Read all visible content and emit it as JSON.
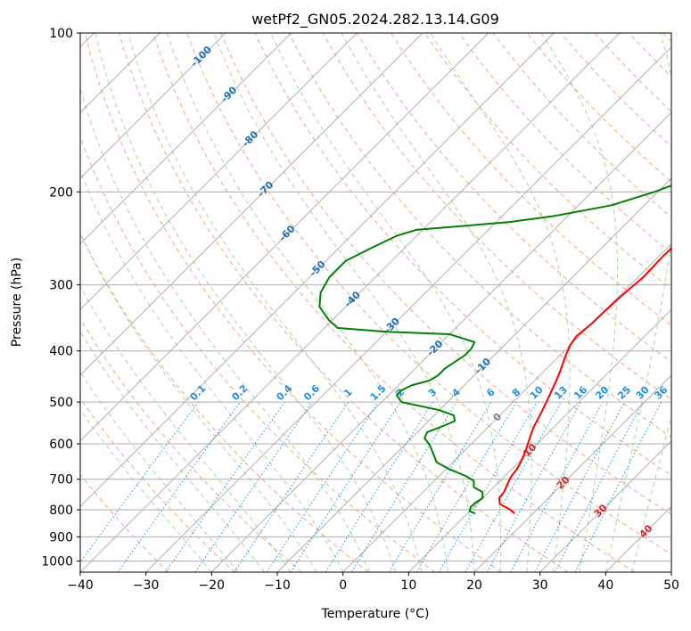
{
  "chart_data": {
    "type": "skew-t",
    "title": "wetPf2_GN05.2024.282.13.14.G09",
    "xlabel": "Temperature (°C)",
    "ylabel": "Pressure (hPa)",
    "xlim": [
      -40,
      50
    ],
    "ylim": [
      1050,
      100
    ],
    "x_ticks": [
      "−40",
      "−30",
      "−20",
      "−10",
      "0",
      "10",
      "20",
      "30",
      "40",
      "50"
    ],
    "y_ticks": [
      "100",
      "200",
      "300",
      "400",
      "500",
      "600",
      "700",
      "800",
      "900",
      "1000"
    ],
    "grid": true,
    "colors": {
      "temperature": "#ff0000",
      "dewpoint": "#008000",
      "isotherm": "#b0b0b0",
      "dry_adiabat": "#f4a582",
      "moist_adiabat": "#a8d5a2",
      "mixing_ratio": "#1f8fe6",
      "isotherm_label": "#1f6fb4",
      "zero_label": "#808080",
      "warm_label": "#d62728"
    },
    "series": [
      {
        "role": "temperature",
        "points": [
          [
            17.2,
            813
          ],
          [
            16.0,
            800
          ],
          [
            13.5,
            780
          ],
          [
            12.5,
            760
          ],
          [
            12.3,
            740
          ],
          [
            11.5,
            710
          ],
          [
            11.0,
            690
          ],
          [
            10.8,
            670
          ],
          [
            10.3,
            650
          ],
          [
            9.7,
            630
          ],
          [
            9.0,
            610
          ],
          [
            8.2,
            590
          ],
          [
            7.0,
            560
          ],
          [
            6.4,
            540
          ],
          [
            5.6,
            515
          ],
          [
            4.3,
            480
          ],
          [
            3.5,
            460
          ],
          [
            2.6,
            440
          ],
          [
            1.0,
            410
          ],
          [
            0.0,
            390
          ],
          [
            -0.4,
            375
          ],
          [
            0.0,
            355
          ],
          [
            0.1,
            335
          ],
          [
            0.3,
            315
          ],
          [
            0.8,
            290
          ],
          [
            0.6,
            265
          ],
          [
            0.8,
            240
          ],
          [
            1.6,
            225
          ],
          [
            3.0,
            210
          ],
          [
            5.0,
            197
          ],
          [
            8.0,
            185
          ],
          [
            10.5,
            175
          ],
          [
            12.5,
            165
          ],
          [
            14.0,
            155
          ],
          [
            14.8,
            145
          ],
          [
            15.8,
            135
          ],
          [
            17.2,
            125
          ],
          [
            19.0,
            116
          ],
          [
            21.0,
            108
          ],
          [
            22.5,
            100
          ]
        ]
      },
      {
        "role": "dewpoint",
        "points": [
          [
            11.2,
            813
          ],
          [
            10.0,
            805
          ],
          [
            9.5,
            790
          ],
          [
            9.6,
            775
          ],
          [
            10.0,
            760
          ],
          [
            9.0,
            740
          ],
          [
            7.0,
            725
          ],
          [
            6.0,
            705
          ],
          [
            4.0,
            690
          ],
          [
            0.5,
            670
          ],
          [
            -2.5,
            650
          ],
          [
            -4.0,
            630
          ],
          [
            -6.0,
            605
          ],
          [
            -8.0,
            585
          ],
          [
            -8.5,
            570
          ],
          [
            -7.0,
            555
          ],
          [
            -6.0,
            543
          ],
          [
            -7.0,
            530
          ],
          [
            -10.0,
            518
          ],
          [
            -17.0,
            500
          ],
          [
            -18.8,
            485
          ],
          [
            -18.8,
            475
          ],
          [
            -18.0,
            465
          ],
          [
            -16.0,
            455
          ],
          [
            -15.5,
            445
          ],
          [
            -15.5,
            432
          ],
          [
            -15.0,
            420
          ],
          [
            -14.5,
            408
          ],
          [
            -14.5,
            396
          ],
          [
            -15.0,
            385
          ],
          [
            -20.0,
            372
          ],
          [
            -30.0,
            368
          ],
          [
            -38.0,
            362
          ],
          [
            -40.5,
            350
          ],
          [
            -44.0,
            330
          ],
          [
            -46.0,
            310
          ],
          [
            -47.0,
            290
          ],
          [
            -47.0,
            270
          ],
          [
            -45.0,
            255
          ],
          [
            -43.0,
            242
          ],
          [
            -41.0,
            236
          ],
          [
            -36.0,
            233
          ],
          [
            -28.0,
            228
          ],
          [
            -22.0,
            222
          ],
          [
            -15.0,
            212
          ],
          [
            -10.5,
            200
          ],
          [
            -7.5,
            190
          ],
          [
            -4.5,
            182
          ],
          [
            -2.5,
            174
          ],
          [
            -1.2,
            166
          ],
          [
            -0.8,
            158
          ],
          [
            -1.5,
            150
          ],
          [
            -2.3,
            143
          ],
          [
            -2.5,
            135
          ],
          [
            -2.3,
            128
          ],
          [
            -0.8,
            120
          ],
          [
            2.0,
            112
          ],
          [
            4.5,
            106
          ],
          [
            7.0,
            100
          ]
        ]
      }
    ],
    "isotherm_labels": [
      "-100",
      "-90",
      "-80",
      "-70",
      "-60",
      "-50",
      "-40",
      "-30",
      "-20",
      "-10"
    ],
    "mixing_ratio_labels": [
      "0.1",
      "0.2",
      "0.4",
      "0.6",
      "1",
      "1.5",
      "2",
      "3",
      "4",
      "6",
      "8",
      "10",
      "13",
      "16",
      "20",
      "25",
      "30",
      "36"
    ],
    "zero_label": "0",
    "warm_isotherm_labels": [
      "10",
      "20",
      "30",
      "40"
    ]
  }
}
